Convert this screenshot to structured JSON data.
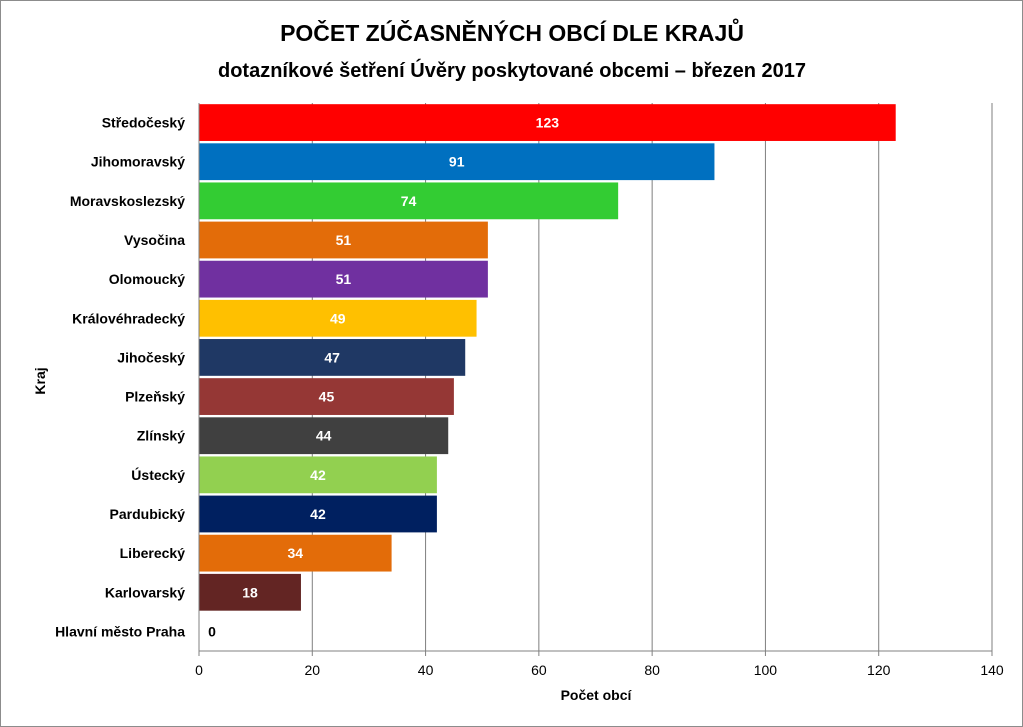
{
  "chart_data": {
    "type": "bar",
    "orientation": "horizontal",
    "title": "POČET ZÚČASNĚNÝCH OBCÍ DLE KRAJŮ",
    "subtitle": "dotazníkové šetření Úvěry poskytované obcemi – březen 2017",
    "xlabel": "Počet obcí",
    "ylabel": "Kraj",
    "xlim": [
      0,
      140
    ],
    "xticks": [
      0,
      20,
      40,
      60,
      80,
      100,
      120,
      140
    ],
    "grid": true,
    "legend": "none",
    "categories": [
      "Středočeský",
      "Jihomoravský",
      "Moravskoslezský",
      "Vysočina",
      "Olomoucký",
      "Královéhradecký",
      "Jihočeský",
      "Plzeňský",
      "Zlínský",
      "Ústecký",
      "Pardubický",
      "Liberecký",
      "Karlovarský",
      "Hlavní město Praha"
    ],
    "values": [
      123,
      91,
      74,
      51,
      51,
      49,
      47,
      45,
      44,
      42,
      42,
      34,
      18,
      0
    ],
    "colors": [
      "#ff0000",
      "#0070c0",
      "#33cc33",
      "#e36c09",
      "#7030a0",
      "#ffc000",
      "#1f3864",
      "#953735",
      "#404040",
      "#92d050",
      "#002060",
      "#e36c09",
      "#632523",
      "#ffffff"
    ]
  }
}
